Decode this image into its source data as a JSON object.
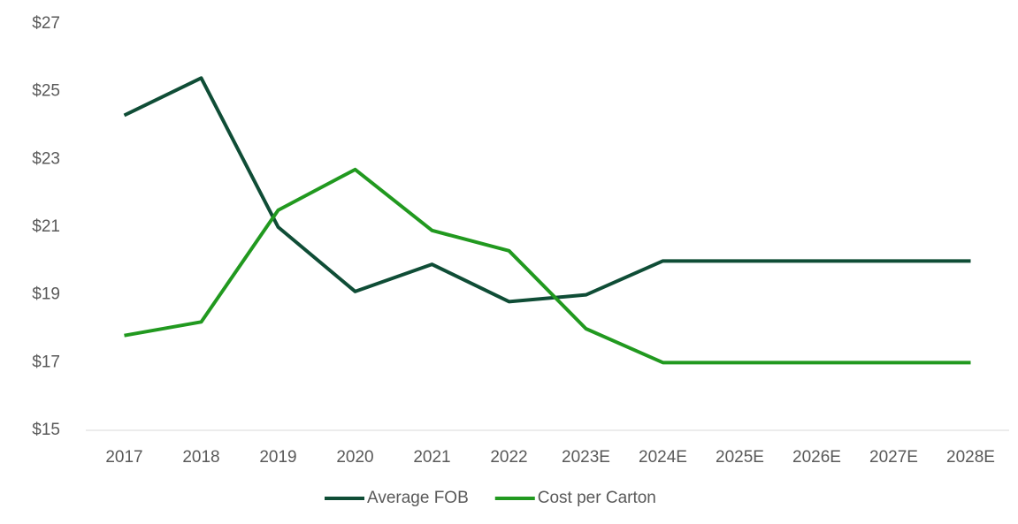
{
  "chart_data": {
    "type": "line",
    "categories": [
      "2017",
      "2018",
      "2019",
      "2020",
      "2021",
      "2022",
      "2023E",
      "2024E",
      "2025E",
      "2026E",
      "2027E",
      "2028E"
    ],
    "series": [
      {
        "name": "Average FOB",
        "color": "#0f4d36",
        "values": [
          24.3,
          25.4,
          21.0,
          19.1,
          19.9,
          18.8,
          19.0,
          20.0,
          20.0,
          20.0,
          20.0,
          20.0
        ]
      },
      {
        "name": "Cost per Carton",
        "color": "#21991f",
        "values": [
          17.8,
          18.2,
          21.5,
          22.7,
          20.9,
          20.3,
          18.0,
          17.0,
          17.0,
          17.0,
          17.0,
          17.0
        ]
      }
    ],
    "ylim": [
      15,
      27
    ],
    "yticks": [
      {
        "value": 15,
        "label": "$15"
      },
      {
        "value": 17,
        "label": "$17"
      },
      {
        "value": 19,
        "label": "$19"
      },
      {
        "value": 21,
        "label": "$21"
      },
      {
        "value": 23,
        "label": "$23"
      },
      {
        "value": 25,
        "label": "$25"
      },
      {
        "value": 27,
        "label": "$27"
      }
    ],
    "legend": "bottom"
  }
}
